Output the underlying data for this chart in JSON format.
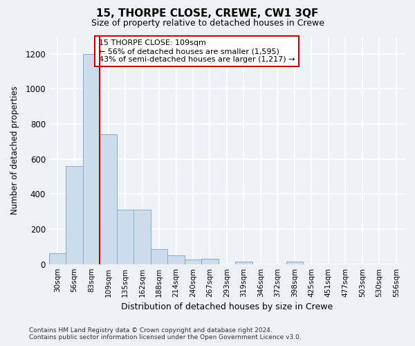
{
  "title": "15, THORPE CLOSE, CREWE, CW1 3QF",
  "subtitle": "Size of property relative to detached houses in Crewe",
  "xlabel": "Distribution of detached houses by size in Crewe",
  "ylabel": "Number of detached properties",
  "footer_line1": "Contains HM Land Registry data © Crown copyright and database right 2024.",
  "footer_line2": "Contains public sector information licensed under the Open Government Licence v3.0.",
  "categories": [
    "30sqm",
    "56sqm",
    "83sqm",
    "109sqm",
    "135sqm",
    "162sqm",
    "188sqm",
    "214sqm",
    "240sqm",
    "267sqm",
    "293sqm",
    "319sqm",
    "346sqm",
    "372sqm",
    "398sqm",
    "425sqm",
    "451sqm",
    "477sqm",
    "503sqm",
    "530sqm",
    "556sqm"
  ],
  "values": [
    60,
    560,
    1200,
    740,
    310,
    310,
    85,
    50,
    25,
    30,
    0,
    15,
    0,
    0,
    15,
    0,
    0,
    0,
    0,
    0,
    0
  ],
  "bar_color": "#ccdcec",
  "bar_edge_color": "#88aacc",
  "highlight_index": 3,
  "highlight_color": "#cc0000",
  "ylim": [
    0,
    1300
  ],
  "yticks": [
    0,
    200,
    400,
    600,
    800,
    1000,
    1200
  ],
  "annotation_text": "15 THORPE CLOSE: 109sqm\n← 56% of detached houses are smaller (1,595)\n43% of semi-detached houses are larger (1,217) →",
  "annotation_box_color": "#cc0000",
  "bg_color": "#eef2f7",
  "grid_color": "#ffffff"
}
